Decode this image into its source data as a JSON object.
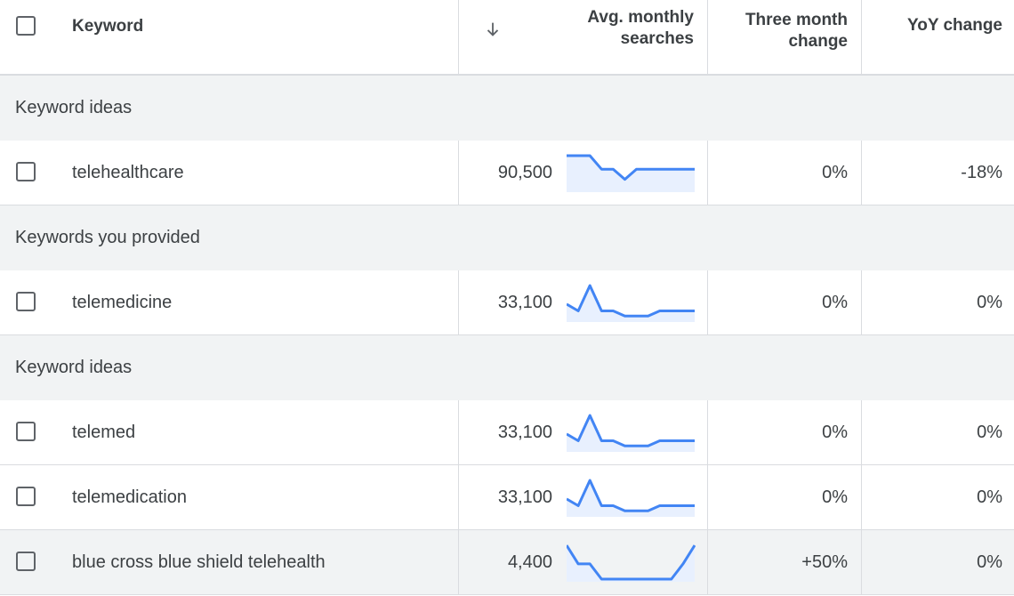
{
  "header": {
    "keyword": "Keyword",
    "avg_line1": "Avg. monthly",
    "avg_line2": "searches",
    "three_line1": "Three month",
    "three_line2": "change",
    "yoy": "YoY change",
    "sort_icon": "arrow-down-icon"
  },
  "groups": [
    {
      "label": "Keyword ideas"
    },
    {
      "label": "Keywords you provided"
    },
    {
      "label": "Keyword ideas"
    }
  ],
  "rows": [
    {
      "keyword": "telehealthcare",
      "avg": "90,500",
      "three": "0%",
      "yoy": "-18%",
      "trend": [
        1,
        1,
        1,
        0.6,
        0.6,
        0.3,
        0.6,
        0.6,
        0.6,
        0.6,
        0.6,
        0.6
      ]
    },
    {
      "keyword": "telemedicine",
      "avg": "33,100",
      "three": "0%",
      "yoy": "0%",
      "trend": [
        0.45,
        0.25,
        1,
        0.25,
        0.25,
        0.1,
        0.1,
        0.1,
        0.25,
        0.25,
        0.25,
        0.25
      ]
    },
    {
      "keyword": "telemed",
      "avg": "33,100",
      "three": "0%",
      "yoy": "0%",
      "trend": [
        0.45,
        0.25,
        1,
        0.25,
        0.25,
        0.1,
        0.1,
        0.1,
        0.25,
        0.25,
        0.25,
        0.25
      ]
    },
    {
      "keyword": "telemedication",
      "avg": "33,100",
      "three": "0%",
      "yoy": "0%",
      "trend": [
        0.45,
        0.25,
        1,
        0.25,
        0.25,
        0.1,
        0.1,
        0.1,
        0.25,
        0.25,
        0.25,
        0.25
      ]
    },
    {
      "keyword": "blue cross blue shield telehealth",
      "avg": "4,400",
      "three": "+50%",
      "yoy": "0%",
      "trend": [
        1,
        0.45,
        0.45,
        0,
        0,
        0,
        0,
        0,
        0,
        0,
        0.45,
        1
      ]
    }
  ],
  "colors": {
    "line": "#4285f4",
    "fill": "#e8f0fe",
    "border": "#dadce0",
    "group_bg": "#f1f3f4"
  }
}
